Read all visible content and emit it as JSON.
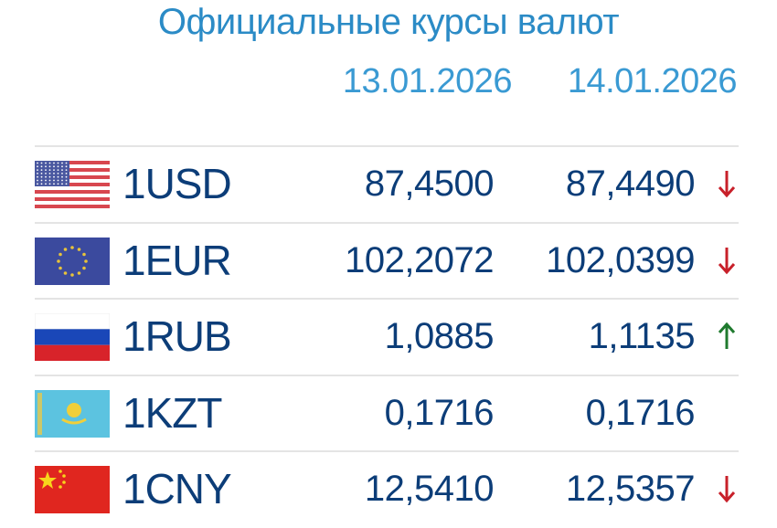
{
  "title": "Официальные курсы валют",
  "dates": [
    "13.01.2026",
    "14.01.2026"
  ],
  "colors": {
    "down": "#c8202a",
    "up": "#1f7a2e",
    "value": "#0c3d78",
    "title": "#2b8bc6"
  },
  "rows": [
    {
      "code": "1USD",
      "flag": "us-flag",
      "prev": "87,4500",
      "curr": "87,4490",
      "trend": "down"
    },
    {
      "code": "1EUR",
      "flag": "eu-flag",
      "prev": "102,2072",
      "curr": "102,0399",
      "trend": "down"
    },
    {
      "code": "1RUB",
      "flag": "ru-flag",
      "prev": "1,0885",
      "curr": "1,1135",
      "trend": "up"
    },
    {
      "code": "1KZT",
      "flag": "kz-flag",
      "prev": "0,1716",
      "curr": "0,1716",
      "trend": "none"
    },
    {
      "code": "1CNY",
      "flag": "cn-flag",
      "prev": "12,5410",
      "curr": "12,5357",
      "trend": "down"
    }
  ]
}
